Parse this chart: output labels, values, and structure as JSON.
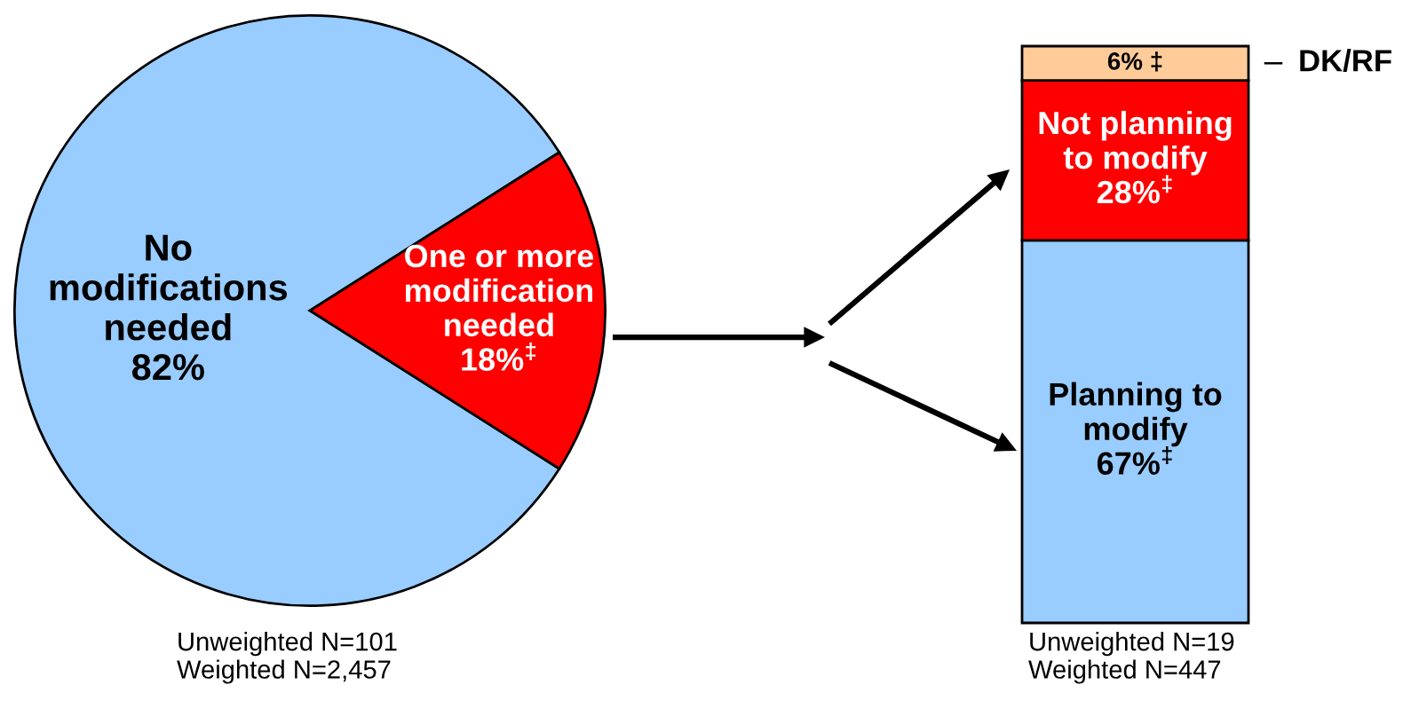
{
  "chart_data": [
    {
      "type": "pie",
      "categories": [
        "No\nmodifications\nneeded",
        "One or more\nmodification\nneeded"
      ],
      "values": [
        82,
        18
      ],
      "colors": [
        "#99ccff",
        "#ff0000"
      ],
      "value_labels": [
        "82%",
        "18%$^{‡}$"
      ],
      "annotations": [
        "Unweighted N=101\nWeighted N=2,457"
      ]
    },
    {
      "type": "bar",
      "stacked": true,
      "categories": [
        null
      ],
      "tick_labels": false,
      "series": [
        {
          "name": "Planning to\nmodify",
          "color": "#99ccff",
          "values": [
            67
          ],
          "value_labels": [
            "67%$^{‡}$"
          ]
        },
        {
          "name": "Not planning\nto modify",
          "color": "#ff0000",
          "values": [
            28
          ],
          "value_labels": [
            "28%$^{‡}$"
          ]
        },
        {
          "name": "DK/RF",
          "color": "#ffcc99",
          "values": [
            6
          ],
          "value_labels": [
            "6% ‡"
          ]
        }
      ],
      "annotations": [
        "Unweighted N=19\nWeighted N=447"
      ]
    }
  ]
}
